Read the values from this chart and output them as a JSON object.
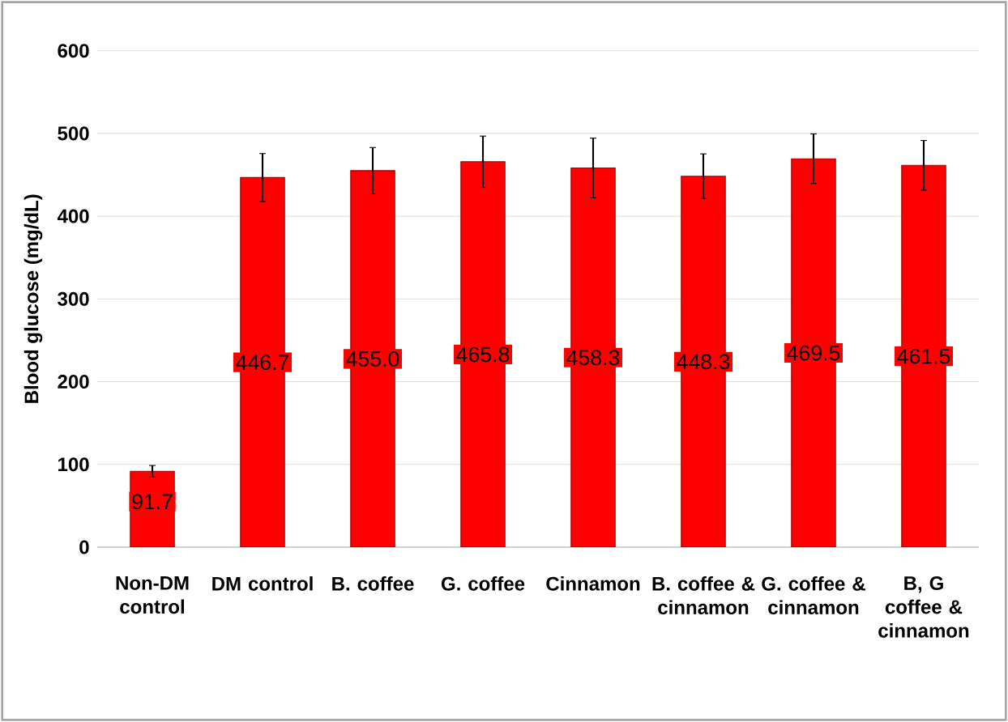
{
  "chart_data": {
    "type": "bar",
    "ylabel": "Blood glucose (mg/dL)",
    "categories": [
      "Non-DM control",
      "DM control",
      "B. coffee",
      "G. coffee",
      "Cinnamon",
      "B. coffee & cinnamon",
      "G. coffee & cinnamon",
      "B, G coffee & cinnamon"
    ],
    "values": [
      91.7,
      446.7,
      455.0,
      465.8,
      458.3,
      448.3,
      469.5,
      461.5
    ],
    "errors": [
      7,
      29,
      28,
      31,
      36,
      27,
      30,
      30
    ],
    "color": "#ff0000",
    "ylim": [
      0,
      600
    ],
    "yticks": [
      0,
      100,
      200,
      300,
      400,
      500,
      600
    ],
    "value_labels": [
      "91.7",
      "446.7",
      "455.0",
      "465.8",
      "458.3",
      "448.3",
      "469.5",
      "461.5"
    ],
    "grid": "y"
  }
}
